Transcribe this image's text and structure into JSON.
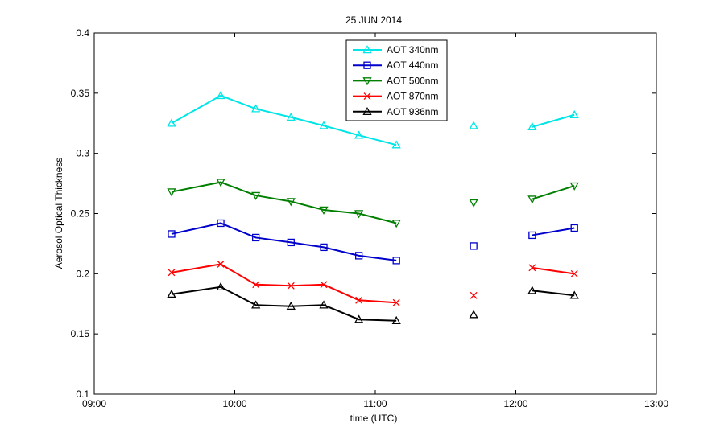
{
  "chart_data": {
    "type": "line",
    "title": "25 JUN 2014",
    "xlabel": "time  (UTC)",
    "ylabel": "Aerosol Optical Thickness",
    "xlim": [
      "09:00",
      "13:00"
    ],
    "ylim": [
      0.1,
      0.4
    ],
    "x_ticks": [
      "09:00",
      "10:00",
      "11:00",
      "12:00",
      "13:00"
    ],
    "y_ticks": [
      "0.1",
      "0.15",
      "0.2",
      "0.25",
      "0.3",
      "0.35",
      "0.4"
    ],
    "grid": false,
    "legend_position": "top-center",
    "x": [
      "09:33",
      "09:54",
      "10:09",
      "10:24",
      "10:38",
      "10:53",
      "11:09",
      "11:42",
      "12:07",
      "12:25"
    ],
    "segments": [
      [
        0,
        6
      ],
      [
        7,
        7
      ],
      [
        8,
        9
      ]
    ],
    "series": [
      {
        "name": "AOT 340nm",
        "color": "#00e5e5",
        "marker": "triangle-up",
        "values": [
          0.325,
          0.348,
          0.337,
          0.33,
          0.323,
          0.315,
          0.307,
          0.323,
          0.322,
          0.332
        ]
      },
      {
        "name": "AOT 440nm",
        "color": "#0000cc",
        "marker": "square",
        "values": [
          0.233,
          0.242,
          0.23,
          0.226,
          0.222,
          0.215,
          0.211,
          0.223,
          0.232,
          0.238
        ]
      },
      {
        "name": "AOT 500nm",
        "color": "#007f00",
        "marker": "triangle-down",
        "values": [
          0.268,
          0.276,
          0.265,
          0.26,
          0.253,
          0.25,
          0.242,
          0.259,
          0.262,
          0.273
        ]
      },
      {
        "name": "AOT 870nm",
        "color": "#ff0000",
        "marker": "x",
        "values": [
          0.201,
          0.208,
          0.191,
          0.19,
          0.191,
          0.178,
          0.176,
          0.182,
          0.205,
          0.2
        ]
      },
      {
        "name": "AOT 936nm",
        "color": "#000000",
        "marker": "triangle-up",
        "values": [
          0.183,
          0.189,
          0.174,
          0.173,
          0.174,
          0.162,
          0.161,
          0.166,
          0.186,
          0.182
        ]
      }
    ]
  }
}
